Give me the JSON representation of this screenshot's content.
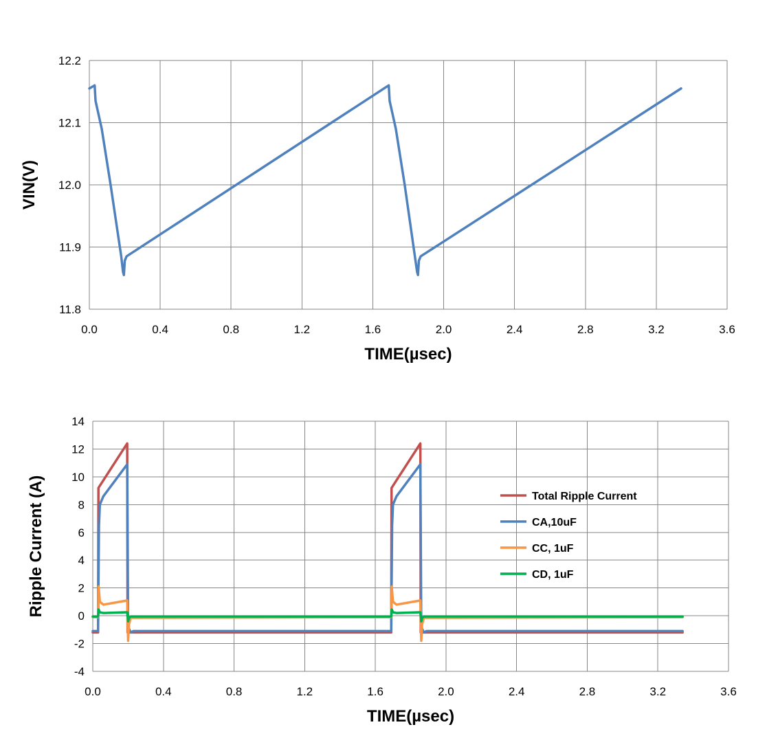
{
  "chart_data": [
    {
      "type": "line",
      "title": "",
      "xlabel": "TIME(µsec)",
      "ylabel": "VIN(V)",
      "xlim": [
        0.0,
        3.6
      ],
      "ylim": [
        11.8,
        12.2
      ],
      "xticks": [
        "0.0",
        "0.4",
        "0.8",
        "1.2",
        "1.6",
        "2.0",
        "2.4",
        "2.8",
        "3.2",
        "3.6"
      ],
      "yticks": [
        "11.8",
        "11.9",
        "12.0",
        "12.1",
        "12.2"
      ],
      "grid": true,
      "series": [
        {
          "color": "#4f81bd",
          "x": [
            0.0,
            0.03,
            0.035,
            0.07,
            0.12,
            0.18,
            0.19,
            0.195,
            0.2,
            0.21,
            1.69,
            1.695,
            1.73,
            1.78,
            1.85,
            1.855,
            1.86,
            1.87,
            3.34
          ],
          "y": [
            12.155,
            12.16,
            12.135,
            12.09,
            12.0,
            11.885,
            11.86,
            11.855,
            11.878,
            11.885,
            12.16,
            12.135,
            12.09,
            12.0,
            11.86,
            11.855,
            11.878,
            11.885,
            12.155
          ]
        }
      ]
    },
    {
      "type": "line",
      "title": "",
      "xlabel": "TIME(µsec)",
      "ylabel": "Ripple Current (A)",
      "xlim": [
        0.0,
        3.6
      ],
      "ylim": [
        -4,
        14
      ],
      "xticks": [
        "0.0",
        "0.4",
        "0.8",
        "1.2",
        "1.6",
        "2.0",
        "2.4",
        "2.8",
        "3.2",
        "3.6"
      ],
      "yticks": [
        "-4",
        "-2",
        "0",
        "2",
        "4",
        "6",
        "8",
        "10",
        "12",
        "14"
      ],
      "grid": true,
      "legend": "right",
      "series": [
        {
          "name": "Total Ripple Current",
          "color": "#c0504d",
          "x": [
            0.0,
            0.03,
            0.032,
            0.195,
            0.197,
            0.21,
            1.69,
            1.692,
            1.855,
            1.857,
            1.87,
            3.34
          ],
          "y": [
            -1.2,
            -1.2,
            9.2,
            12.4,
            -1.2,
            -1.2,
            -1.2,
            9.2,
            12.4,
            -1.2,
            -1.2,
            -1.2
          ]
        },
        {
          "name": "CA,10uF",
          "color": "#4f81bd",
          "x": [
            0.0,
            0.03,
            0.035,
            0.04,
            0.06,
            0.195,
            0.198,
            0.2,
            0.215,
            0.23,
            1.69,
            1.695,
            1.7,
            1.72,
            1.855,
            1.858,
            1.86,
            1.875,
            1.89,
            3.34
          ],
          "y": [
            -1.1,
            -1.1,
            6.5,
            8.0,
            8.6,
            10.9,
            4.0,
            -0.8,
            -1.2,
            -1.1,
            -1.1,
            6.5,
            8.0,
            8.6,
            10.9,
            4.0,
            -0.8,
            -1.2,
            -1.1,
            -1.1
          ]
        },
        {
          "name": "CC, 1uF",
          "color": "#f79646",
          "x": [
            0.0,
            0.03,
            0.033,
            0.04,
            0.06,
            0.195,
            0.198,
            0.2,
            0.205,
            0.215,
            1.69,
            1.693,
            1.7,
            1.72,
            1.855,
            1.858,
            1.86,
            1.865,
            1.875,
            3.34
          ],
          "y": [
            -0.1,
            -0.1,
            2.1,
            1.0,
            0.8,
            1.1,
            -0.5,
            -1.8,
            -0.6,
            -0.15,
            -0.1,
            2.1,
            1.0,
            0.8,
            1.1,
            -0.5,
            -1.8,
            -0.6,
            -0.15,
            -0.1
          ]
        },
        {
          "name": "CD, 1uF",
          "color": "#00b050",
          "x": [
            0.0,
            0.03,
            0.033,
            0.04,
            0.06,
            0.195,
            0.198,
            0.2,
            0.205,
            0.215,
            1.69,
            1.693,
            1.7,
            1.72,
            1.855,
            1.858,
            1.86,
            1.865,
            1.875,
            3.34
          ],
          "y": [
            -0.05,
            -0.05,
            0.45,
            0.25,
            0.2,
            0.25,
            -0.1,
            -0.4,
            -0.15,
            -0.05,
            -0.05,
            0.45,
            0.25,
            0.2,
            0.25,
            -0.1,
            -0.4,
            -0.15,
            -0.05,
            -0.05
          ]
        }
      ]
    }
  ]
}
